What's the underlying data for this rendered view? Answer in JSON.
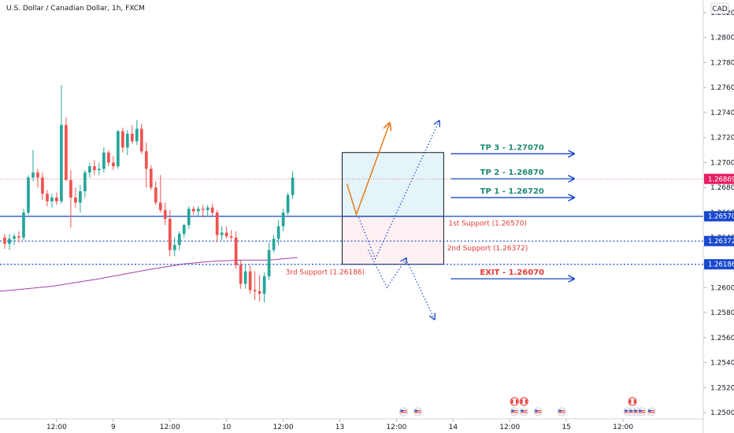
{
  "chart_title": "U.S. Dollar / Canadian Dollar, 1h, FXCM",
  "currency": "CAD",
  "colors": {
    "up": "#26a69a",
    "down": "#ef5350",
    "support_line": "#1848cc",
    "ma_line": "#a33fa3",
    "path_orange": "#e8791a",
    "tp_color": "#1e8a74",
    "exit_color": "#e53935",
    "arrow_blue": "#1848cc",
    "price_badge": "#e91e63",
    "level_badge": "#1848cc"
  },
  "price_axis": {
    "ticks": [
      "1.28200",
      "1.28000",
      "1.27800",
      "1.27600",
      "1.27400",
      "1.27200",
      "1.27000",
      "1.26800",
      "1.26600",
      "1.26400",
      "1.26200",
      "1.26000",
      "1.25800",
      "1.25600",
      "1.25400",
      "1.25200",
      "1.25000"
    ],
    "badges": [
      {
        "label": "1.26869",
        "kind": "current"
      },
      {
        "label": "1.26570",
        "kind": "level"
      },
      {
        "label": "1.26372",
        "kind": "level"
      },
      {
        "label": "1.26186",
        "kind": "level"
      }
    ]
  },
  "time_axis": {
    "ticks": [
      {
        "label": "12:00",
        "bar": 11
      },
      {
        "label": "9",
        "bar": 23
      },
      {
        "label": "12:00",
        "bar": 35
      },
      {
        "label": "10",
        "bar": 47
      },
      {
        "label": "12:00",
        "bar": 59
      },
      {
        "label": "13",
        "bar": 71
      },
      {
        "label": "12:00",
        "bar": 83
      },
      {
        "label": "14",
        "bar": 95
      },
      {
        "label": "12:00",
        "bar": 107
      },
      {
        "label": "15",
        "bar": 119
      },
      {
        "label": "12:00",
        "bar": 131
      }
    ]
  },
  "annotations": {
    "tp3": "TP 3 - 1.27070",
    "tp2": "TP 2 - 1.26870",
    "tp1": "TP 1 - 1.26720",
    "exit": "EXIT - 1.26070",
    "support1": "1st Support (1.26570)",
    "support2": "2nd Support (1.26372)",
    "support3": "3rd Support (1.26186)"
  },
  "event_markers": {
    "flags": [
      {
        "bar": 84.5,
        "kind": "us",
        "row": 0
      },
      {
        "bar": 87.5,
        "kind": "us",
        "row": 0
      },
      {
        "bar": 108,
        "kind": "ca",
        "row": 1
      },
      {
        "bar": 110,
        "kind": "ca",
        "row": 1
      },
      {
        "bar": 108,
        "kind": "us",
        "row": 0
      },
      {
        "bar": 110,
        "kind": "us",
        "row": 0
      },
      {
        "bar": 113,
        "kind": "us",
        "row": 0
      },
      {
        "bar": 118,
        "kind": "us",
        "row": 0
      },
      {
        "bar": 133,
        "kind": "ca",
        "row": 1
      },
      {
        "bar": 132,
        "kind": "us",
        "row": 0
      },
      {
        "bar": 133,
        "kind": "us",
        "row": 0
      },
      {
        "bar": 134,
        "kind": "us",
        "row": 0
      },
      {
        "bar": 135,
        "kind": "us",
        "row": 0
      },
      {
        "bar": 137,
        "kind": "us",
        "row": 0
      }
    ]
  },
  "chart_data": {
    "type": "candlestick",
    "title": "U.S. Dollar / Canadian Dollar, 1h, FXCM",
    "ylim": [
      1.2495,
      1.283
    ],
    "x_bar_range": [
      -1,
      148
    ],
    "candles": [
      {
        "o": 1.264,
        "h": 1.2643,
        "l": 1.2631,
        "c": 1.2635
      },
      {
        "o": 1.2635,
        "h": 1.2643,
        "l": 1.263,
        "c": 1.2639
      },
      {
        "o": 1.2639,
        "h": 1.2643,
        "l": 1.2634,
        "c": 1.2641
      },
      {
        "o": 1.2641,
        "h": 1.2645,
        "l": 1.2636,
        "c": 1.264
      },
      {
        "o": 1.264,
        "h": 1.2663,
        "l": 1.2638,
        "c": 1.266
      },
      {
        "o": 1.266,
        "h": 1.269,
        "l": 1.2658,
        "c": 1.2688
      },
      {
        "o": 1.2688,
        "h": 1.271,
        "l": 1.2685,
        "c": 1.2692
      },
      {
        "o": 1.2692,
        "h": 1.2695,
        "l": 1.268,
        "c": 1.2688
      },
      {
        "o": 1.2688,
        "h": 1.2692,
        "l": 1.267,
        "c": 1.2675
      },
      {
        "o": 1.2675,
        "h": 1.2678,
        "l": 1.2665,
        "c": 1.2669
      },
      {
        "o": 1.2669,
        "h": 1.2675,
        "l": 1.2664,
        "c": 1.2672
      },
      {
        "o": 1.2672,
        "h": 1.2676,
        "l": 1.2666,
        "c": 1.2669
      },
      {
        "o": 1.2669,
        "h": 1.2762,
        "l": 1.2667,
        "c": 1.273
      },
      {
        "o": 1.273,
        "h": 1.2736,
        "l": 1.2685,
        "c": 1.2686
      },
      {
        "o": 1.2686,
        "h": 1.2694,
        "l": 1.2648,
        "c": 1.2672
      },
      {
        "o": 1.2672,
        "h": 1.268,
        "l": 1.2664,
        "c": 1.2668
      },
      {
        "o": 1.2668,
        "h": 1.2682,
        "l": 1.266,
        "c": 1.2677
      },
      {
        "o": 1.2677,
        "h": 1.2694,
        "l": 1.2672,
        "c": 1.2692
      },
      {
        "o": 1.2692,
        "h": 1.27,
        "l": 1.2688,
        "c": 1.2697
      },
      {
        "o": 1.2697,
        "h": 1.2702,
        "l": 1.269,
        "c": 1.2694
      },
      {
        "o": 1.2694,
        "h": 1.27,
        "l": 1.269,
        "c": 1.2695
      },
      {
        "o": 1.2695,
        "h": 1.2712,
        "l": 1.2692,
        "c": 1.2708
      },
      {
        "o": 1.2708,
        "h": 1.271,
        "l": 1.2697,
        "c": 1.27
      },
      {
        "o": 1.27,
        "h": 1.2705,
        "l": 1.2694,
        "c": 1.2697
      },
      {
        "o": 1.2697,
        "h": 1.2726,
        "l": 1.2695,
        "c": 1.2725
      },
      {
        "o": 1.2725,
        "h": 1.2728,
        "l": 1.2708,
        "c": 1.2712
      },
      {
        "o": 1.2712,
        "h": 1.2726,
        "l": 1.2706,
        "c": 1.2723
      },
      {
        "o": 1.2723,
        "h": 1.273,
        "l": 1.2715,
        "c": 1.2717
      },
      {
        "o": 1.2717,
        "h": 1.2734,
        "l": 1.2714,
        "c": 1.2727
      },
      {
        "o": 1.2727,
        "h": 1.2731,
        "l": 1.2707,
        "c": 1.2709
      },
      {
        "o": 1.2709,
        "h": 1.2716,
        "l": 1.268,
        "c": 1.2695
      },
      {
        "o": 1.2695,
        "h": 1.2698,
        "l": 1.2678,
        "c": 1.268
      },
      {
        "o": 1.268,
        "h": 1.2685,
        "l": 1.2666,
        "c": 1.2668
      },
      {
        "o": 1.2668,
        "h": 1.269,
        "l": 1.266,
        "c": 1.2662
      },
      {
        "o": 1.2662,
        "h": 1.2668,
        "l": 1.265,
        "c": 1.2655
      },
      {
        "o": 1.2655,
        "h": 1.2662,
        "l": 1.2625,
        "c": 1.263
      },
      {
        "o": 1.263,
        "h": 1.264,
        "l": 1.2625,
        "c": 1.2634
      },
      {
        "o": 1.2634,
        "h": 1.2645,
        "l": 1.263,
        "c": 1.2643
      },
      {
        "o": 1.2643,
        "h": 1.2651,
        "l": 1.264,
        "c": 1.265
      },
      {
        "o": 1.265,
        "h": 1.2665,
        "l": 1.2647,
        "c": 1.2663
      },
      {
        "o": 1.2663,
        "h": 1.2665,
        "l": 1.2658,
        "c": 1.2661
      },
      {
        "o": 1.2661,
        "h": 1.2665,
        "l": 1.2657,
        "c": 1.2663
      },
      {
        "o": 1.2663,
        "h": 1.2666,
        "l": 1.2656,
        "c": 1.2662
      },
      {
        "o": 1.2662,
        "h": 1.2666,
        "l": 1.2657,
        "c": 1.2664
      },
      {
        "o": 1.2664,
        "h": 1.2667,
        "l": 1.2657,
        "c": 1.266
      },
      {
        "o": 1.266,
        "h": 1.2662,
        "l": 1.2636,
        "c": 1.2642
      },
      {
        "o": 1.2642,
        "h": 1.2649,
        "l": 1.2638,
        "c": 1.2644
      },
      {
        "o": 1.2644,
        "h": 1.2649,
        "l": 1.2639,
        "c": 1.2641
      },
      {
        "o": 1.2641,
        "h": 1.2646,
        "l": 1.2637,
        "c": 1.264
      },
      {
        "o": 1.264,
        "h": 1.2645,
        "l": 1.2615,
        "c": 1.2618
      },
      {
        "o": 1.2618,
        "h": 1.2622,
        "l": 1.2599,
        "c": 1.2603
      },
      {
        "o": 1.2603,
        "h": 1.2619,
        "l": 1.2599,
        "c": 1.2613
      },
      {
        "o": 1.2613,
        "h": 1.2618,
        "l": 1.2595,
        "c": 1.2598
      },
      {
        "o": 1.2598,
        "h": 1.2613,
        "l": 1.259,
        "c": 1.2597
      },
      {
        "o": 1.2597,
        "h": 1.261,
        "l": 1.2589,
        "c": 1.2595
      },
      {
        "o": 1.2595,
        "h": 1.2612,
        "l": 1.2588,
        "c": 1.2609
      },
      {
        "o": 1.2609,
        "h": 1.2636,
        "l": 1.2606,
        "c": 1.263
      },
      {
        "o": 1.263,
        "h": 1.2642,
        "l": 1.2628,
        "c": 1.2639
      },
      {
        "o": 1.2639,
        "h": 1.2654,
        "l": 1.2634,
        "c": 1.2649
      },
      {
        "o": 1.2649,
        "h": 1.2663,
        "l": 1.2645,
        "c": 1.266
      },
      {
        "o": 1.266,
        "h": 1.2676,
        "l": 1.2658,
        "c": 1.2674
      },
      {
        "o": 1.2674,
        "h": 1.2693,
        "l": 1.2671,
        "c": 1.2688
      }
    ],
    "moving_average": {
      "name": "",
      "points": [
        [
          -1,
          1.2597
        ],
        [
          10,
          1.2601
        ],
        [
          20,
          1.2607
        ],
        [
          30,
          1.2614
        ],
        [
          38,
          1.2619
        ],
        [
          44,
          1.2621
        ],
        [
          50,
          1.2622
        ],
        [
          56,
          1.2622
        ],
        [
          62,
          1.2624
        ]
      ]
    },
    "levels": [
      {
        "label": "1st Support (1.26570)",
        "value": 1.2657
      },
      {
        "label": "2nd Support (1.26372)",
        "value": 1.26372
      },
      {
        "label": "3rd Support (1.26186)",
        "value": 1.26186
      }
    ],
    "targets": [
      {
        "label": "TP 3 - 1.27070",
        "value": 1.2707
      },
      {
        "label": "TP 2 - 1.26870",
        "value": 1.2687
      },
      {
        "label": "TP 1 - 1.26720",
        "value": 1.2672
      },
      {
        "label": "EXIT - 1.26070",
        "value": 1.2607
      }
    ],
    "current_price": 1.26869
  }
}
